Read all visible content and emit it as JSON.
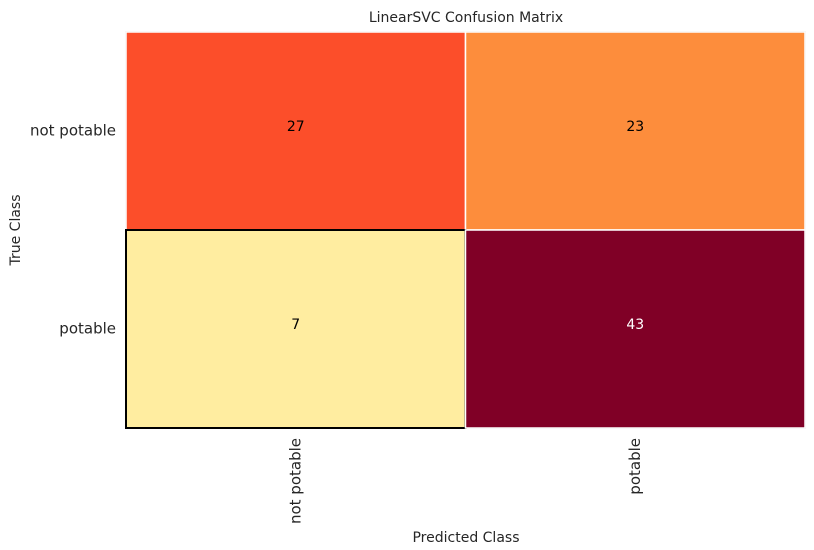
{
  "chart_data": {
    "type": "heatmap",
    "title": "LinearSVC Confusion Matrix",
    "xlabel": "Predicted Class",
    "ylabel": "True Class",
    "x_categories": [
      "not potable",
      "potable"
    ],
    "y_categories": [
      "not potable",
      "potable"
    ],
    "values": [
      [
        27,
        23
      ],
      [
        7,
        43
      ]
    ],
    "colormap": "YlOrRd",
    "cell_colors": [
      [
        "#fc4e2a",
        "#fd8d3c"
      ],
      [
        "#ffeda0",
        "#800026"
      ]
    ],
    "text_colors": [
      [
        "#000000",
        "#000000"
      ],
      [
        "#000000",
        "#ffffff"
      ]
    ],
    "grid": false
  }
}
